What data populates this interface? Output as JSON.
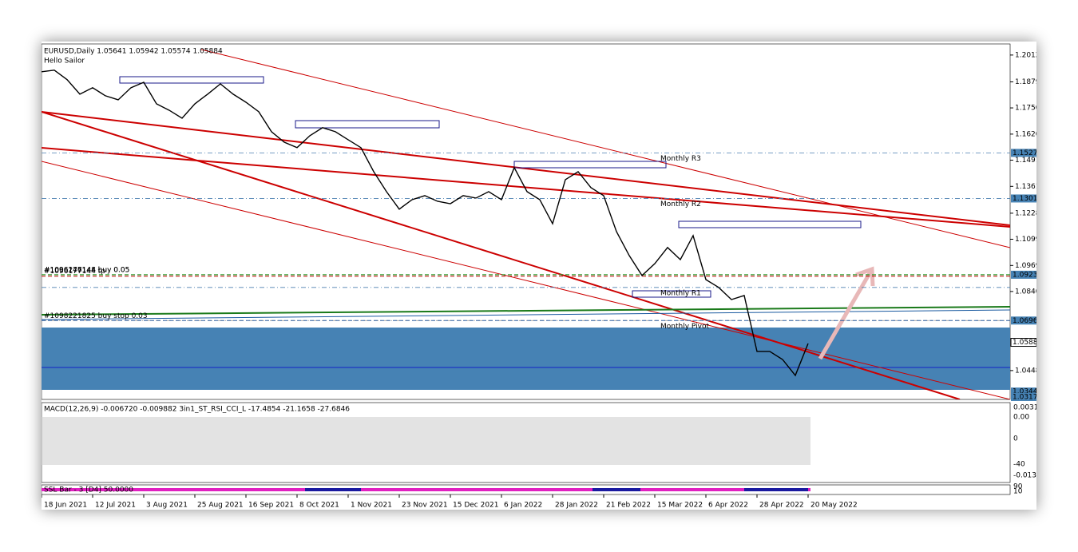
{
  "chart_data": {
    "type": "line",
    "title": "EURUSD,Daily  1.05641 1.05942 1.05574 1.05884",
    "subtitle": "Hello Sailor",
    "color": "#000000",
    "categories": [
      "18 Jun 2021",
      null,
      null,
      null,
      "12 Jul 2021",
      null,
      null,
      null,
      "3 Aug 2021",
      null,
      null,
      null,
      "25 Aug 2021",
      null,
      null,
      null,
      "16 Sep 2021",
      null,
      null,
      null,
      "8 Oct 2021",
      null,
      null,
      null,
      "1 Nov 2021",
      null,
      null,
      null,
      "23 Nov 2021",
      null,
      null,
      null,
      "15 Dec 2021",
      null,
      null,
      null,
      "6 Jan 2022",
      null,
      null,
      null,
      "28 Jan 2022",
      null,
      null,
      null,
      "21 Feb 2022",
      null,
      null,
      null,
      "15 Mar 2022",
      null,
      null,
      null,
      "6 Apr 2022",
      null,
      null,
      null,
      "28 Apr 2022",
      null,
      null,
      null,
      "20 May 2022"
    ],
    "values": [
      1.1929,
      1.1937,
      1.189,
      1.1818,
      1.185,
      1.181,
      1.179,
      1.185,
      1.1877,
      1.177,
      1.1738,
      1.1699,
      1.177,
      1.1818,
      1.1869,
      1.1818,
      1.1778,
      1.1731,
      1.1632,
      1.158,
      1.1553,
      1.1612,
      1.1652,
      1.1632,
      1.1592,
      1.1553,
      1.1434,
      1.1335,
      1.1248,
      1.1295,
      1.1315,
      1.1287,
      1.1275,
      1.1315,
      1.1303,
      1.1335,
      1.1295,
      1.1454,
      1.1335,
      1.1295,
      1.1176,
      1.1394,
      1.1434,
      1.1355,
      1.1315,
      1.1137,
      1.1018,
      1.0919,
      1.0978,
      1.1058,
      1.0998,
      1.1117,
      1.0899,
      1.086,
      1.08,
      1.082,
      1.0543,
      1.0543,
      1.0503,
      1.0424,
      1.0582
    ],
    "ylim": [
      1.0305,
      1.2067
    ],
    "yticks": [
      1.2012,
      1.1879,
      {
        "value": 1.175,
        "label": "1.1750"
      },
      {
        "value": 1.162,
        "label": "1.1620"
      },
      1.1491,
      1.1361,
      1.1228,
      1.1099,
      1.0969,
      {
        "value": 1.084,
        "label": "1.0840"
      },
      1.0448
    ],
    "price_labels": [
      1.1527,
      1.1301,
      1.0923,
      1.0696,
      1.0588,
      1.0344,
      1.0317
    ],
    "levels": [
      {
        "label": "Monthly R3",
        "value": 1.1527,
        "color": "#4a7fb0"
      },
      {
        "label": "Monthly R2",
        "value": 1.1301,
        "color": "#4a7fb0"
      },
      {
        "label": "Monthly R1",
        "value": 1.086,
        "color": "#4a7fb0"
      },
      {
        "label": "Monthly Pivot",
        "value": 1.0696,
        "color": "#8a8a8a"
      }
    ],
    "orders": [
      {
        "label": "#1096177144 tp",
        "value": 1.0916,
        "color": "#c00000"
      },
      {
        "label": "#1096177144 buy 0.05",
        "value": 1.0923,
        "color": "#2a9a2a"
      },
      {
        "label": "#1096246148 buy 0.05",
        "value": 1.0923,
        "color": "#2a9a2a"
      },
      {
        "label": "#1098221825 buy stop 0.03",
        "value": 1.0696,
        "color": "#3060a0"
      }
    ],
    "indicator": {
      "title": "MACD(12,26,9) -0.006720 -0.009882  3in1_ST_RSI_CCI_L -17.4854 -21.1658 -27.6846",
      "labels": [
        "0.00310",
        "0.00",
        "0",
        "-40",
        "-0.0131"
      ]
    },
    "ssl": {
      "title": "SSL Bar - 3 [D4] 50.0000",
      "labels": [
        "90",
        "10"
      ]
    }
  }
}
